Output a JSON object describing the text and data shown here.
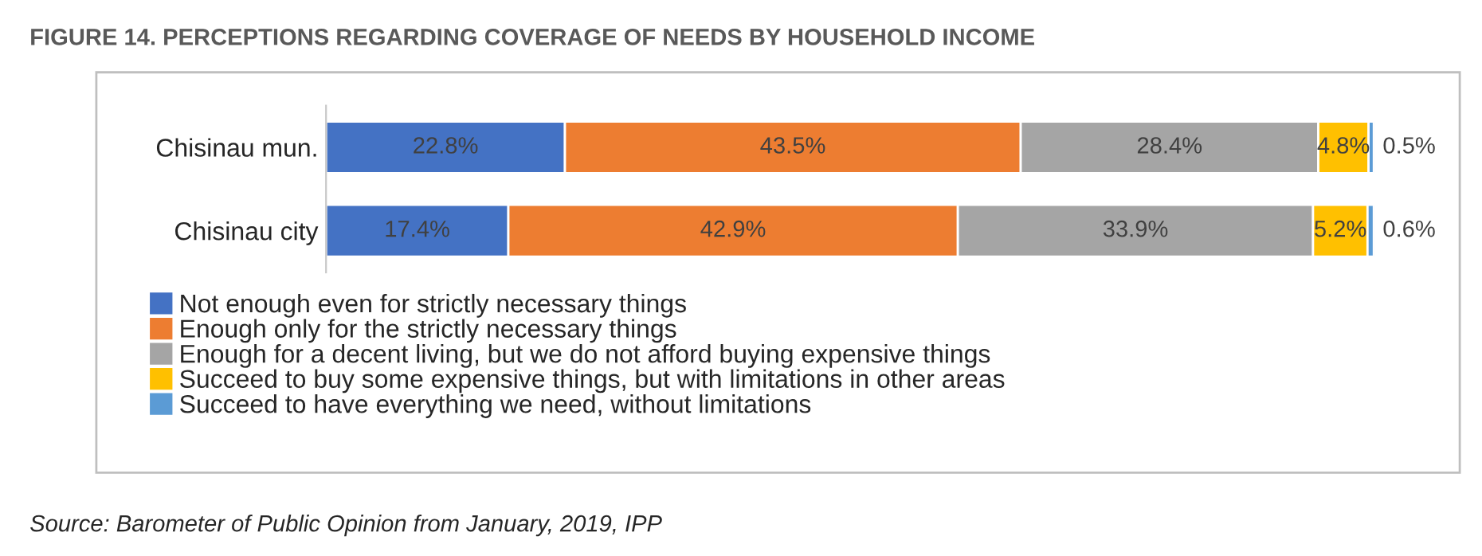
{
  "chart_data": {
    "type": "bar",
    "orientation": "horizontal",
    "stacked": true,
    "title": "FIGURE 14. PERCEPTIONS REGARDING COVERAGE OF NEEDS BY HOUSEHOLD INCOME",
    "categories": [
      "Chisinau mun.",
      "Chisinau city"
    ],
    "series": [
      {
        "name": "Not enough even for strictly necessary things",
        "color": "#4472c4",
        "values": [
          22.8,
          17.4
        ],
        "value_labels": [
          "22.8%",
          "17.4%"
        ]
      },
      {
        "name": "Enough only for the strictly necessary things",
        "color": "#ed7d31",
        "values": [
          43.5,
          42.9
        ],
        "value_labels": [
          "43.5%",
          "42.9%"
        ]
      },
      {
        "name": "Enough for a decent living, but we do not afford buying expensive things",
        "color": "#a5a5a5",
        "values": [
          28.4,
          33.9
        ],
        "value_labels": [
          "28.4%",
          "33.9%"
        ]
      },
      {
        "name": "Succeed to buy some expensive things, but with limitations in other areas",
        "color": "#ffc000",
        "values": [
          4.8,
          5.2
        ],
        "value_labels": [
          "4.8%",
          "5.2%"
        ]
      },
      {
        "name": "Succeed to have everything we need, without limitations",
        "color": "#5b9bd5",
        "values": [
          0.5,
          0.6
        ],
        "value_labels": [
          "0.5%",
          "0.6%"
        ]
      }
    ],
    "tick_labels": "y",
    "legend": "bottom left",
    "annotations": [
      "Source: Barometer of Public Opinion from January, 2019, IPP"
    ]
  }
}
